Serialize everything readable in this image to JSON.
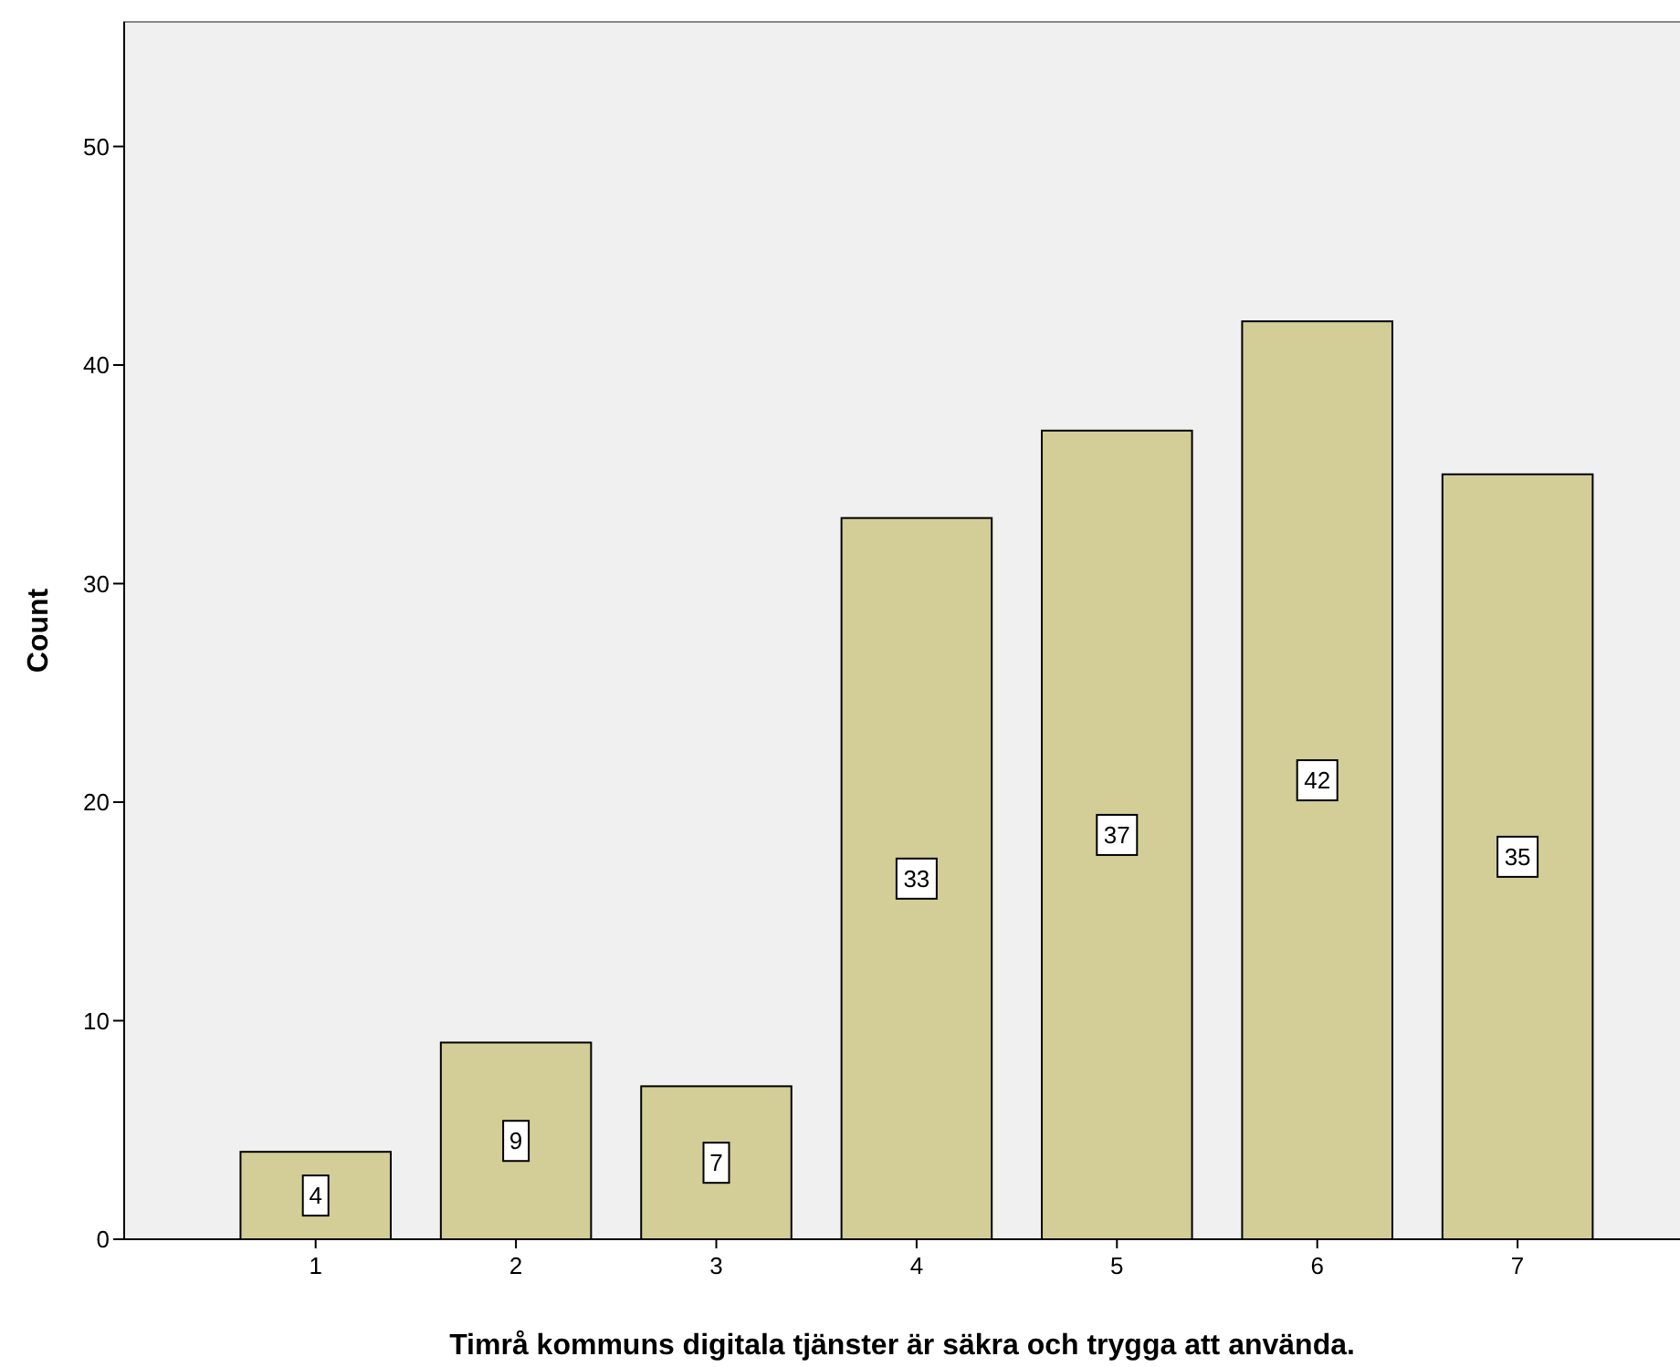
{
  "chart_data": {
    "type": "bar",
    "xlabel": "Timrå kommuns digitala tjänster är säkra och trygga att använda.",
    "ylabel": "Count",
    "categories": [
      "1",
      "2",
      "3",
      "4",
      "5",
      "6",
      "7"
    ],
    "values": [
      4,
      9,
      7,
      33,
      37,
      42,
      35
    ],
    "color": "#d3ce97",
    "ylim": [
      0,
      55.7
    ],
    "yticks": [
      0,
      10,
      20,
      30,
      40,
      50
    ],
    "grid": false,
    "data_labels": true
  }
}
